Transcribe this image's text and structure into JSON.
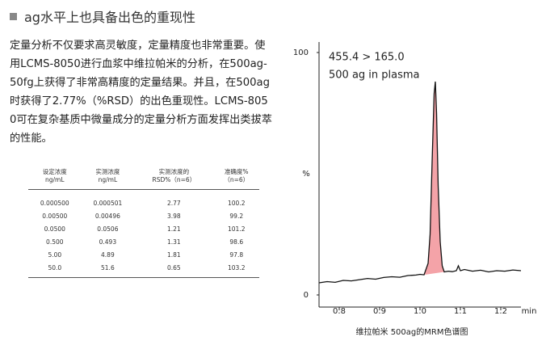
{
  "heading": "ag水平上也具备出色的重现性",
  "paragraph": "定量分析不仅要求高灵敏度，定量精度也非常重要。使用LCMS-8050进行血浆中维拉帕米的分析，在500ag-50fg上获得了非常高精度的定量结果。并且，在500ag时获得了2.77%（%RSD）的出色重现性。LCMS-8050可在复杂基质中微量成分的定量分析方面发挥出类拔萃的性能。",
  "table": {
    "header": [
      [
        "设定浓度",
        "ng/mL"
      ],
      [
        "实测浓度",
        "ng/mL"
      ],
      [
        "实测浓度的",
        "RSD%（n=6）"
      ],
      [
        "准确度%",
        "（n=6）"
      ]
    ],
    "rows": [
      [
        "0.000500",
        "0.000501",
        "2.77",
        "100.2"
      ],
      [
        "0.00500",
        "0.00496",
        "3.98",
        "99.2"
      ],
      [
        "0.0500",
        "0.0506",
        "1.21",
        "101.2"
      ],
      [
        "0.500",
        "0.493",
        "1.31",
        "98.6"
      ],
      [
        "5.00",
        "4.89",
        "1.81",
        "97.8"
      ],
      [
        "50.0",
        "51.6",
        "0.65",
        "103.2"
      ]
    ]
  },
  "chart_data": {
    "type": "line",
    "annotations": [
      "455.4 > 165.0",
      "500 ag in plasma"
    ],
    "ylabel": "%",
    "xlabel": "min",
    "caption": "维拉帕米 500ag的MRM色谱图",
    "color": "#111111",
    "fill_color": "#f4a3a8",
    "x": [
      0.75,
      0.77,
      0.79,
      0.81,
      0.83,
      0.85,
      0.87,
      0.89,
      0.91,
      0.93,
      0.95,
      0.97,
      0.99,
      1.0,
      1.01,
      1.02,
      1.025,
      1.03,
      1.035,
      1.038,
      1.041,
      1.045,
      1.05,
      1.055,
      1.06,
      1.07,
      1.08,
      1.09,
      1.095,
      1.1,
      1.11,
      1.13,
      1.15,
      1.17,
      1.19,
      1.21,
      1.23,
      1.25
    ],
    "values": [
      5,
      5.5,
      5.2,
      6,
      5.8,
      6.3,
      6.8,
      6.5,
      7.2,
      7.5,
      7.3,
      8,
      8.2,
      8.5,
      8.3,
      13,
      25,
      55,
      83,
      88,
      75,
      45,
      22,
      12,
      9.5,
      9.8,
      9.6,
      10,
      12,
      10,
      10.5,
      9.8,
      10.2,
      9.5,
      10,
      9.8,
      10.3,
      10
    ],
    "xlim": [
      0.75,
      1.25
    ],
    "ylim": [
      0,
      100
    ],
    "xticks": [
      0.8,
      0.9,
      {
        "value": 1,
        "label": "1.0"
      },
      1.1,
      1.2
    ],
    "yticks": [
      0,
      100
    ]
  }
}
